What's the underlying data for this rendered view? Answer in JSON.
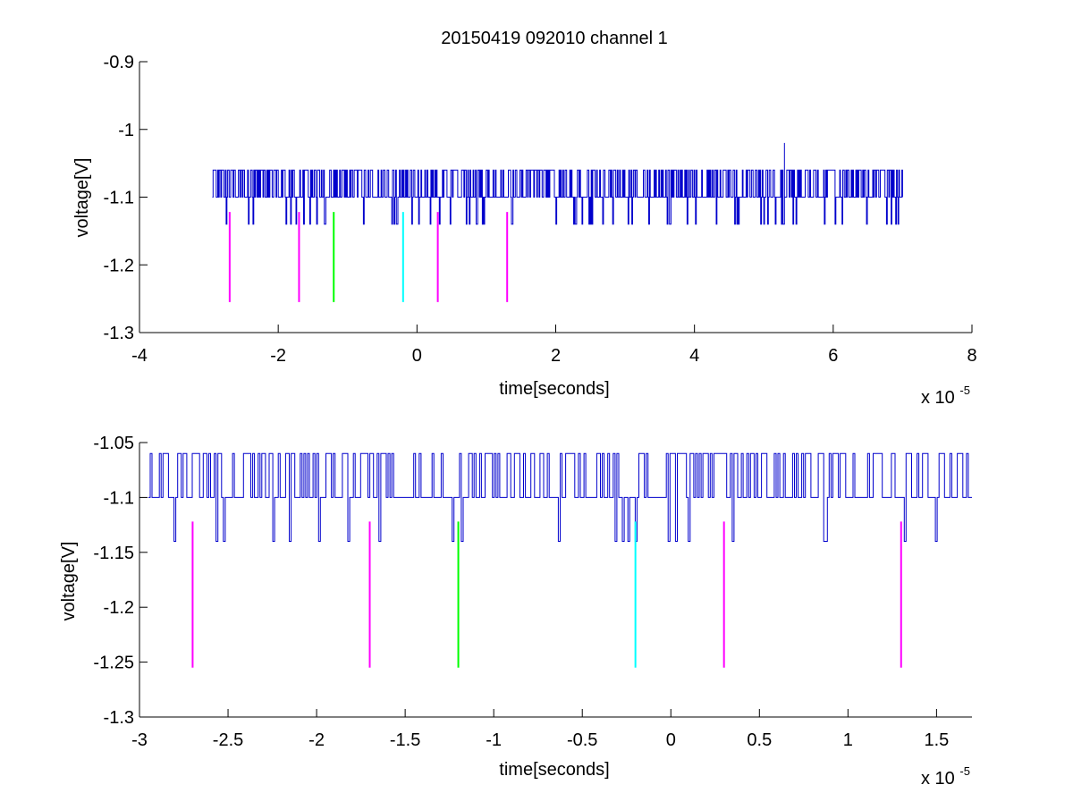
{
  "figure": {
    "title": "20150419 092010 channel 1"
  },
  "chart_data": [
    {
      "type": "line",
      "title": "20150419 092010 channel 1",
      "xlabel": "time[seconds]",
      "ylabel": "voltage[V]",
      "x_multiplier_label": "x 10",
      "x_multiplier_exp": "-5",
      "xlim": [
        -4,
        8
      ],
      "ylim": [
        -1.3,
        -0.9
      ],
      "xticks": [
        -4,
        -2,
        0,
        2,
        4,
        6,
        8
      ],
      "xtick_labels": [
        "-4",
        "-2",
        "0",
        "2",
        "4",
        "6",
        "8"
      ],
      "yticks": [
        -1.3,
        -1.2,
        -1.1,
        -1.0,
        -0.9
      ],
      "ytick_labels": [
        "-1.3",
        "-1.2",
        "-1.1",
        "-1",
        "-0.9"
      ],
      "grid": false,
      "signal": {
        "color": "#0000cc",
        "x_start": -2.95,
        "x_end": 7.0,
        "baseline": -1.1,
        "high": -1.06,
        "low": -1.14,
        "spike": {
          "x": 5.3,
          "y": -1.02
        }
      },
      "markers": [
        {
          "x": -2.7,
          "y_top": -1.122,
          "y_bottom": -1.255,
          "color": "#ff00ff"
        },
        {
          "x": -1.7,
          "y_top": -1.122,
          "y_bottom": -1.255,
          "color": "#ff00ff"
        },
        {
          "x": -1.2,
          "y_top": -1.122,
          "y_bottom": -1.255,
          "color": "#00ff00"
        },
        {
          "x": -0.2,
          "y_top": -1.122,
          "y_bottom": -1.255,
          "color": "#00ffff"
        },
        {
          "x": 0.3,
          "y_top": -1.122,
          "y_bottom": -1.255,
          "color": "#ff00ff"
        },
        {
          "x": 1.3,
          "y_top": -1.122,
          "y_bottom": -1.255,
          "color": "#ff00ff"
        }
      ]
    },
    {
      "type": "line",
      "title": "",
      "xlabel": "time[seconds]",
      "ylabel": "voltage[V]",
      "x_multiplier_label": "x 10",
      "x_multiplier_exp": "-5",
      "xlim": [
        -3.0,
        1.7
      ],
      "ylim": [
        -1.3,
        -1.05
      ],
      "xticks": [
        -3,
        -2.5,
        -2,
        -1.5,
        -1,
        -0.5,
        0,
        0.5,
        1,
        1.5
      ],
      "xtick_labels": [
        "-3",
        "-2.5",
        "-2",
        "-1.5",
        "-1",
        "-0.5",
        "0",
        "0.5",
        "1",
        "1.5"
      ],
      "yticks": [
        -1.3,
        -1.25,
        -1.2,
        -1.15,
        -1.1,
        -1.05
      ],
      "ytick_labels": [
        "-1.3",
        "-1.25",
        "-1.2",
        "-1.15",
        "-1.1",
        "-1.05"
      ],
      "grid": false,
      "signal": {
        "color": "#0000cc",
        "x_start": -2.95,
        "x_end": 1.7,
        "baseline": -1.1,
        "high": -1.06,
        "low": -1.14
      },
      "markers": [
        {
          "x": -2.7,
          "y_top": -1.122,
          "y_bottom": -1.255,
          "color": "#ff00ff"
        },
        {
          "x": -1.7,
          "y_top": -1.122,
          "y_bottom": -1.255,
          "color": "#ff00ff"
        },
        {
          "x": -1.2,
          "y_top": -1.122,
          "y_bottom": -1.255,
          "color": "#00ff00"
        },
        {
          "x": -0.2,
          "y_top": -1.122,
          "y_bottom": -1.255,
          "color": "#00ffff"
        },
        {
          "x": 0.3,
          "y_top": -1.122,
          "y_bottom": -1.255,
          "color": "#ff00ff"
        },
        {
          "x": 1.3,
          "y_top": -1.122,
          "y_bottom": -1.255,
          "color": "#ff00ff"
        }
      ]
    }
  ]
}
